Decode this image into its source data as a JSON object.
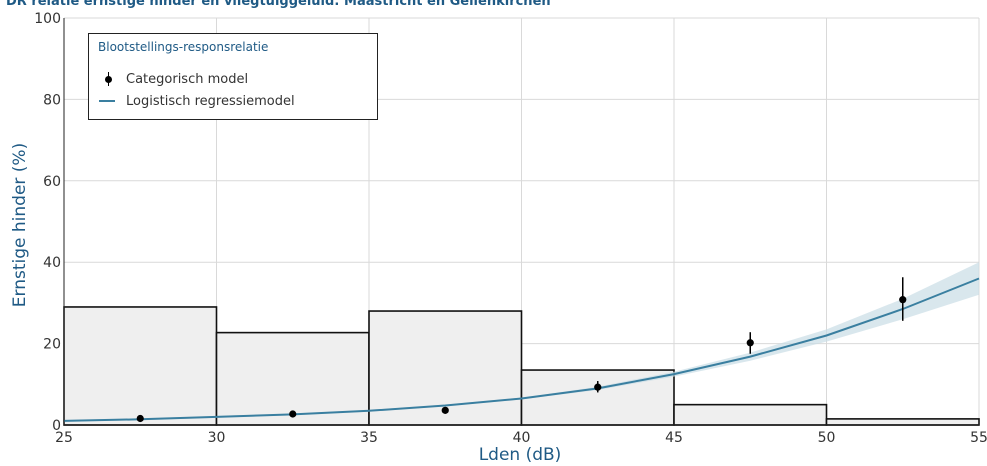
{
  "title": "DR relatie ernstige hinder en vliegtuiggeluid: Maastricht en Geilenkirchen",
  "legend": {
    "title": "Blootstellings-responsrelatie",
    "items": [
      {
        "label": "Categorisch model",
        "symbol": "point-errorbar"
      },
      {
        "label": "Logistisch regressiemodel",
        "symbol": "line"
      }
    ]
  },
  "colors": {
    "line": "#3a7fa0",
    "band": "#c9dde6",
    "bar_fill": "#efefef",
    "bar_edge": "#111111",
    "points": "#000000",
    "grid": "#d9d9d9",
    "title": "#1f5a85"
  },
  "chart_data": {
    "type": "bar",
    "title": "DR relatie ernstige hinder en vliegtuiggeluid: Maastricht en Geilenkirchen",
    "xlabel": "Lden (dB)",
    "ylabel": "Ernstige hinder (%)",
    "xlim": [
      25,
      55
    ],
    "ylim": [
      0,
      100
    ],
    "xticks": [
      25,
      30,
      35,
      40,
      45,
      50,
      55
    ],
    "yticks": [
      0,
      20,
      40,
      60,
      80,
      100
    ],
    "grid": true,
    "legend_position": "top-left",
    "histogram_bins": [
      {
        "x0": 25,
        "x1": 30,
        "value": 29
      },
      {
        "x0": 30,
        "x1": 35,
        "value": 22.7
      },
      {
        "x0": 35,
        "x1": 40,
        "value": 28
      },
      {
        "x0": 40,
        "x1": 45,
        "value": 13.5
      },
      {
        "x0": 45,
        "x1": 50,
        "value": 5
      },
      {
        "x0": 50,
        "x1": 55,
        "value": 1.5
      }
    ],
    "series": [
      {
        "name": "Categorisch model",
        "type": "scatter",
        "points": [
          {
            "x": 27.5,
            "y": 1.6,
            "low": 1.2,
            "high": 2.0
          },
          {
            "x": 32.5,
            "y": 2.7,
            "low": 2.2,
            "high": 3.3
          },
          {
            "x": 37.5,
            "y": 3.6,
            "low": 3.1,
            "high": 4.2
          },
          {
            "x": 42.5,
            "y": 9.3,
            "low": 8.0,
            "high": 10.8
          },
          {
            "x": 47.5,
            "y": 20.2,
            "low": 17.5,
            "high": 22.8
          },
          {
            "x": 52.5,
            "y": 30.8,
            "low": 25.6,
            "high": 36.3
          }
        ]
      },
      {
        "name": "Logistisch regressiemodel",
        "type": "line",
        "x": [
          25,
          27.5,
          30,
          32.5,
          35,
          37.5,
          40,
          42.5,
          45,
          47.5,
          50,
          52.5,
          55
        ],
        "y": [
          1.0,
          1.4,
          2.0,
          2.6,
          3.5,
          4.8,
          6.5,
          9.0,
          12.5,
          16.8,
          22.0,
          28.5,
          36.0
        ],
        "lower": [
          0.8,
          1.2,
          1.8,
          2.4,
          3.3,
          4.6,
          6.3,
          8.6,
          11.9,
          15.8,
          20.5,
          26.0,
          32.0
        ],
        "upper": [
          1.2,
          1.6,
          2.2,
          2.8,
          3.7,
          5.0,
          6.7,
          9.4,
          13.1,
          17.8,
          23.5,
          31.0,
          40.0
        ]
      }
    ]
  }
}
